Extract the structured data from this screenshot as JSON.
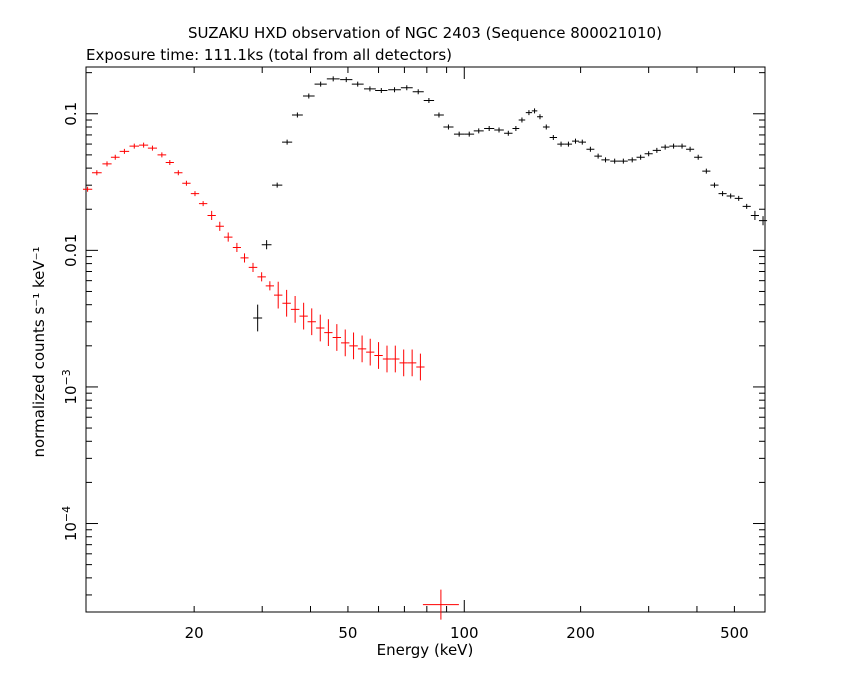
{
  "chart_data": {
    "type": "scatter",
    "title": "SUZAKU HXD observation of NGC 2403 (Sequence 800021010)",
    "subtitle": "Exposure time: 111.1ks (total from all detectors)",
    "xlabel": "Energy (keV)",
    "ylabel": "normalized counts s⁻¹ keV⁻¹",
    "x_scale": "log",
    "y_scale": "log",
    "xlim": [
      10.5,
      600
    ],
    "ylim": [
      2.25e-05,
      0.22
    ],
    "x_ticks": [
      20,
      50,
      100,
      200,
      500
    ],
    "y_ticks": [
      {
        "value": 0.1,
        "label": "0.1"
      },
      {
        "value": 0.01,
        "label": "0.01"
      },
      {
        "value": 0.001,
        "base": "10",
        "exp": "−3"
      },
      {
        "value": 0.0001,
        "base": "10",
        "exp": "−4"
      }
    ],
    "grid": false,
    "series": [
      {
        "color": "#ff0000",
        "points": [
          [
            10.6,
            0.028
          ],
          [
            11.2,
            0.037
          ],
          [
            11.9,
            0.043
          ],
          [
            12.5,
            0.048
          ],
          [
            13.2,
            0.053
          ],
          [
            14.0,
            0.058
          ],
          [
            14.8,
            0.059
          ],
          [
            15.6,
            0.056
          ],
          [
            16.5,
            0.05
          ],
          [
            17.3,
            0.044
          ],
          [
            18.2,
            0.037
          ],
          [
            19.1,
            0.031
          ],
          [
            20.1,
            0.026
          ],
          [
            21.1,
            0.022
          ],
          [
            22.2,
            0.018
          ],
          [
            23.3,
            0.015
          ],
          [
            24.5,
            0.0125
          ],
          [
            25.8,
            0.0105
          ],
          [
            27.0,
            0.0088
          ],
          [
            28.4,
            0.0075
          ],
          [
            29.9,
            0.0064
          ],
          [
            31.4,
            0.0055
          ],
          [
            33.0,
            0.0047
          ],
          [
            34.7,
            0.0041
          ],
          [
            36.5,
            0.0037
          ],
          [
            38.4,
            0.0033
          ],
          [
            40.3,
            0.003
          ],
          [
            42.4,
            0.0027
          ],
          [
            44.5,
            0.0025
          ],
          [
            46.8,
            0.0023
          ],
          [
            49.2,
            0.0021
          ],
          [
            51.7,
            0.002
          ],
          [
            54.4,
            0.0019
          ],
          [
            57.1,
            0.0018
          ],
          [
            60.0,
            0.0017
          ],
          [
            63.1,
            0.0016
          ],
          [
            66.3,
            0.0016
          ],
          [
            69.7,
            0.0015
          ],
          [
            73.3,
            0.0015
          ],
          [
            77.0,
            0.0014
          ]
        ]
      },
      {
        "color": "#ff0000",
        "points": [
          [
            87,
            2.55e-05
          ]
        ]
      },
      {
        "color": "#000000",
        "points": [
          [
            29.2,
            0.0032
          ],
          [
            30.8,
            0.011
          ],
          [
            32.8,
            0.03
          ],
          [
            34.8,
            0.062
          ],
          [
            37.0,
            0.098
          ],
          [
            39.6,
            0.135
          ],
          [
            42.5,
            0.165
          ],
          [
            45.8,
            0.18
          ],
          [
            49.5,
            0.178
          ],
          [
            53.0,
            0.165
          ],
          [
            57.0,
            0.152
          ],
          [
            61.0,
            0.148
          ],
          [
            66.0,
            0.15
          ],
          [
            71.0,
            0.155
          ],
          [
            76.0,
            0.145
          ],
          [
            81.0,
            0.125
          ],
          [
            86.0,
            0.098
          ],
          [
            91.0,
            0.08
          ],
          [
            97.0,
            0.071
          ],
          [
            103.0,
            0.071
          ],
          [
            109.0,
            0.075
          ],
          [
            116.0,
            0.078
          ],
          [
            123.0,
            0.076
          ],
          [
            130.0,
            0.072
          ],
          [
            136.0,
            0.078
          ],
          [
            141.0,
            0.09
          ],
          [
            147.0,
            0.102
          ],
          [
            152.0,
            0.105
          ],
          [
            157.0,
            0.095
          ],
          [
            163.0,
            0.08
          ],
          [
            170.0,
            0.067
          ],
          [
            178.0,
            0.06
          ],
          [
            186.0,
            0.06
          ],
          [
            194.0,
            0.063
          ],
          [
            202.0,
            0.062
          ],
          [
            212.0,
            0.055
          ],
          [
            222.0,
            0.049
          ],
          [
            232.0,
            0.046
          ],
          [
            245.0,
            0.045
          ],
          [
            258.0,
            0.045
          ],
          [
            272.0,
            0.046
          ],
          [
            286.0,
            0.048
          ],
          [
            300.0,
            0.051
          ],
          [
            315.0,
            0.054
          ],
          [
            331.0,
            0.057
          ],
          [
            348.0,
            0.058
          ],
          [
            366.0,
            0.058
          ],
          [
            384.0,
            0.055
          ],
          [
            403.0,
            0.048
          ],
          [
            423.0,
            0.038
          ],
          [
            444.0,
            0.03
          ],
          [
            466.0,
            0.026
          ],
          [
            489.0,
            0.025
          ],
          [
            513.0,
            0.024
          ],
          [
            538.0,
            0.021
          ],
          [
            565.0,
            0.018
          ],
          [
            593.0,
            0.0165
          ]
        ]
      }
    ]
  }
}
